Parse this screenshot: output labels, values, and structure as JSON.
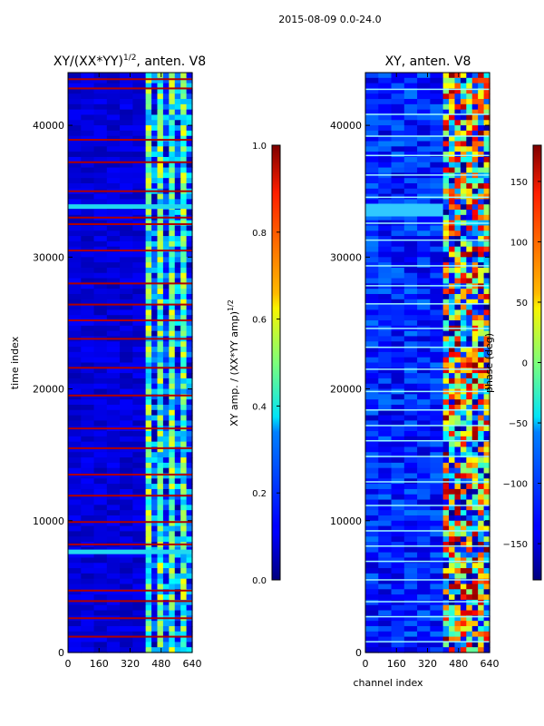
{
  "suptitle": "2015-08-09 0.0-24.0",
  "chart_data": [
    {
      "type": "heatmap",
      "title": "XY/(XX*YY)",
      "title_exponent": "1/2",
      "title_suffix": ", anten. V8",
      "xlabel": "",
      "ylabel": "time index",
      "xlim": [
        0,
        640
      ],
      "ylim": [
        0,
        44000
      ],
      "xticks": [
        0,
        160,
        320,
        480,
        640
      ],
      "yticks": [
        0,
        10000,
        20000,
        30000,
        40000
      ],
      "colorbar": {
        "label": "XY amp. / (XX*YY amp)",
        "label_exponent": "1/2",
        "range": [
          0.0,
          1.0
        ],
        "ticks": [
          "0.0",
          "0.2",
          "0.4",
          "0.6",
          "0.8",
          "1.0"
        ],
        "colormap": "jet"
      },
      "features": {
        "background_level": 0.08,
        "band_start_channel": 400,
        "band_end_channel": 640,
        "band_level": 0.45,
        "hot_rows_time_index": [
          1200,
          2600,
          3900,
          4700,
          8200,
          9900,
          11900,
          13500,
          15500,
          17000,
          19500,
          21600,
          23800,
          25200,
          26400,
          28000,
          30500,
          32500,
          33000,
          35000,
          37200,
          38900,
          42800,
          43500
        ],
        "cyan_rows_time_index": [
          7600,
          33800
        ]
      }
    },
    {
      "type": "heatmap",
      "title": "XY, anten. V8",
      "xlabel": "channel index",
      "ylabel": "",
      "xlim": [
        0,
        640
      ],
      "ylim": [
        0,
        44000
      ],
      "xticks": [
        0,
        160,
        320,
        480,
        640
      ],
      "yticks": [
        0,
        10000,
        20000,
        30000,
        40000
      ],
      "colorbar": {
        "label": "phase (deg)",
        "range": [
          -180,
          180
        ],
        "ticks": [
          "−150",
          "−100",
          "−50",
          "0",
          "50",
          "100",
          "150"
        ],
        "colormap": "jet"
      },
      "features": {
        "background_level_deg": -130,
        "band_start_channel": 400,
        "band_end_channel": 640,
        "mixed_band": true,
        "horizontal_stripes": true
      }
    }
  ]
}
